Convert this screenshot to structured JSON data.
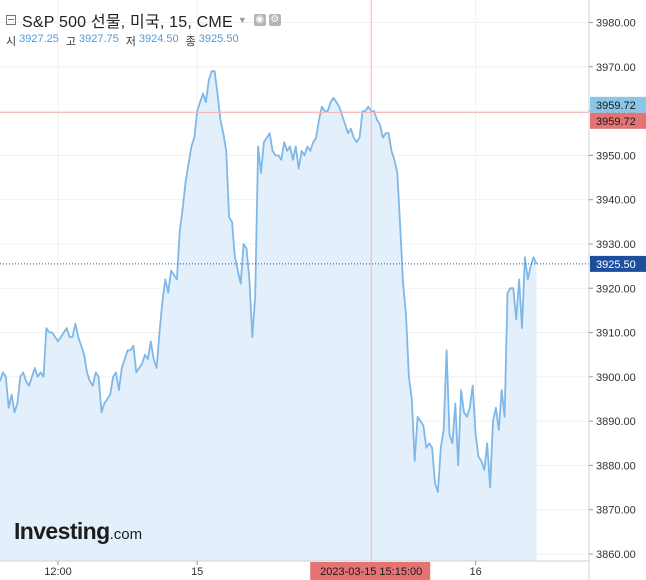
{
  "header": {
    "title": "S&P 500 선물, 미국, 15, CME",
    "ohlc": [
      {
        "label": "시",
        "value": "3927.25"
      },
      {
        "label": "고",
        "value": "3927.75"
      },
      {
        "label": "저",
        "value": "3924.50"
      },
      {
        "label": "종",
        "value": "3925.50"
      }
    ]
  },
  "logo": {
    "brand": "Investing",
    "suffix": ".com"
  },
  "colors": {
    "line": "#7fb8e8",
    "area": "#e3f0fb",
    "crosshair": "#f2b5b5",
    "last_price": "#1a56b0",
    "crosshair_label_bg": "#e57373",
    "series_label_bg": "#8ac6e8",
    "last_label_bg": "#1e4f9c"
  },
  "chart_data": {
    "type": "area",
    "ylim": [
      3860,
      3985
    ],
    "y_ticks": [
      {
        "v": 3860,
        "label": "3860.00"
      },
      {
        "v": 3870,
        "label": "3870.00"
      },
      {
        "v": 3880,
        "label": "3880.00"
      },
      {
        "v": 3890,
        "label": "3890.00"
      },
      {
        "v": 3900,
        "label": "3900.00"
      },
      {
        "v": 3910,
        "label": "3910.00"
      },
      {
        "v": 3920,
        "label": "3920.00"
      },
      {
        "v": 3930,
        "label": "3930.00"
      },
      {
        "v": 3940,
        "label": "3940.00"
      },
      {
        "v": 3950,
        "label": "3950.00"
      },
      {
        "v": 3960,
        "label": "3960.00"
      },
      {
        "v": 3970,
        "label": "3970.00"
      },
      {
        "v": 3980,
        "label": "3980.00"
      }
    ],
    "x_ticks": [
      {
        "i": 20,
        "label": "12:00"
      },
      {
        "i": 68,
        "label": "15"
      },
      {
        "i": 164,
        "label": "16"
      }
    ],
    "crosshair": {
      "i": 128,
      "value": 3959.72,
      "value_label": "3959.72",
      "time_label": "2023-03-15 15:15:00"
    },
    "last_price": {
      "value": 3925.5,
      "label": "3925.50"
    },
    "series_value_label": "3959.72",
    "values": [
      3899,
      3901,
      3900,
      3893,
      3896,
      3892,
      3894,
      3900,
      3901,
      3899,
      3898,
      3900,
      3902,
      3900,
      3901,
      3900,
      3911,
      3910,
      3910,
      3909,
      3908,
      3909,
      3910,
      3911,
      3909,
      3909,
      3912,
      3909,
      3907,
      3905,
      3901,
      3899,
      3898,
      3901,
      3900,
      3892,
      3894,
      3895,
      3896,
      3900,
      3901,
      3897,
      3902,
      3904,
      3906,
      3906,
      3907,
      3901,
      3902,
      3903,
      3905,
      3904,
      3908,
      3904,
      3902,
      3910,
      3917,
      3922,
      3919,
      3924,
      3923,
      3922,
      3933,
      3938,
      3944,
      3948,
      3952,
      3954,
      3960,
      3962,
      3964,
      3962,
      3967,
      3969,
      3969,
      3964,
      3958,
      3955,
      3951,
      3936,
      3935,
      3927,
      3924,
      3921,
      3930,
      3929,
      3922,
      3909,
      3918,
      3952,
      3946,
      3953,
      3954,
      3955,
      3951,
      3950,
      3950,
      3949,
      3953,
      3951,
      3952,
      3949,
      3952,
      3947,
      3951,
      3950,
      3952,
      3951,
      3953,
      3954,
      3958,
      3961,
      3960,
      3960,
      3962,
      3963,
      3962,
      3961,
      3959,
      3957,
      3955,
      3956,
      3954,
      3953,
      3954,
      3960,
      3960,
      3961,
      3960,
      3960,
      3958,
      3957,
      3954,
      3955,
      3955,
      3951,
      3949,
      3946,
      3934,
      3921,
      3914,
      3900,
      3895,
      3881,
      3891,
      3890,
      3889,
      3884,
      3885,
      3884,
      3876,
      3874,
      3884,
      3888,
      3906,
      3887,
      3885,
      3894,
      3880,
      3897,
      3892,
      3891,
      3893,
      3898,
      3887,
      3882,
      3881,
      3879,
      3885,
      3875,
      3890,
      3893,
      3888,
      3897,
      3891,
      3919,
      3920,
      3920,
      3913,
      3922,
      3911,
      3927,
      3922,
      3925,
      3927,
      3925.5
    ]
  }
}
